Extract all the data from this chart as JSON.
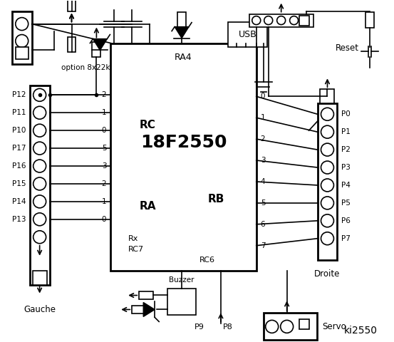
{
  "bg_color": "#ffffff",
  "title": "ki2550",
  "chip_label": "18F2550",
  "chip_sublabel": "RA4",
  "left_connector_label": "Gauche",
  "right_connector_label": "Droite",
  "left_pins": [
    "P12",
    "P11",
    "P10",
    "P17",
    "P16",
    "P15",
    "P14",
    "P13"
  ],
  "right_pins": [
    "P0",
    "P1",
    "P2",
    "P3",
    "P4",
    "P5",
    "P6",
    "P7"
  ],
  "rc_labels": [
    "2",
    "1",
    "0",
    "5",
    "3",
    "2",
    "1",
    "0"
  ],
  "rb_labels": [
    "0",
    "1",
    "2",
    "3",
    "4",
    "5",
    "6",
    "7"
  ],
  "option_text": "option 8x22k",
  "rc_text": "RC",
  "ra_text": "RA",
  "rb_text": "RB",
  "rx_text": "Rx",
  "rc7_text": "RC7",
  "rc6_text": "RC6",
  "buzzer_text": "Buzzer",
  "p9_text": "P9",
  "p8_text": "P8",
  "servo_text": "Servo",
  "usb_text": "USB",
  "reset_text": "Reset"
}
